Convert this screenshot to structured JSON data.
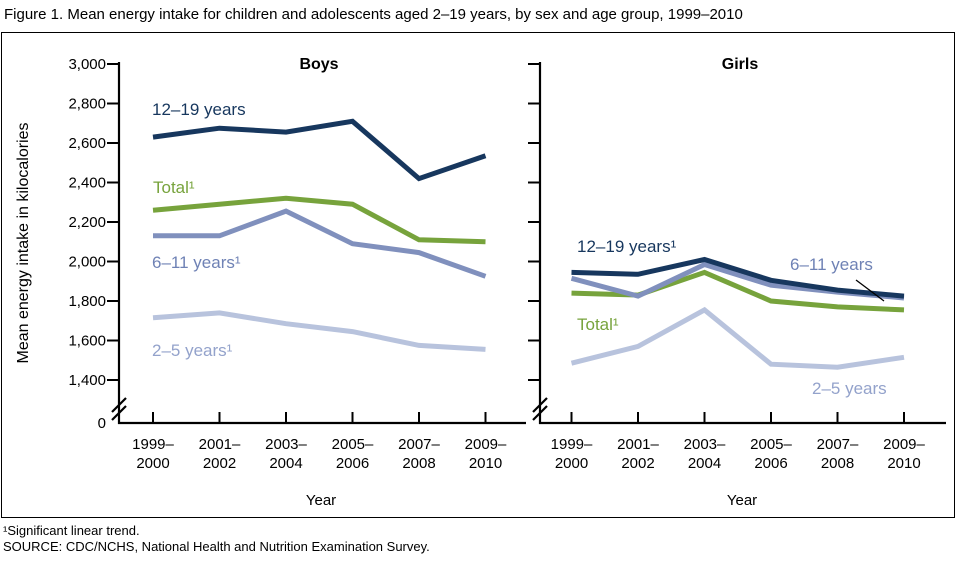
{
  "chart_data": {
    "type": "line",
    "title": "Figure 1. Mean energy intake for children and adolescents aged 2–19 years, by sex and age group, 1999–2010",
    "ylabel": "Mean energy intake in kilocalories",
    "xlabel": "Year",
    "ylim_displayed": [
      1400,
      3000
    ],
    "axis_break_to_zero": true,
    "zero_label": "0",
    "ytick_labels": [
      "3,000",
      "2,800",
      "2,600",
      "2,400",
      "2,200",
      "2,000",
      "1,800",
      "1,600",
      "1,400"
    ],
    "ytick_values": [
      3000,
      2800,
      2600,
      2400,
      2200,
      2000,
      1800,
      1600,
      1400
    ],
    "categories": [
      "1999–2000",
      "2001–2002",
      "2003–2004",
      "2005–2006",
      "2007–2008",
      "2009–2010"
    ],
    "category_display": [
      [
        "1999–",
        "2000"
      ],
      [
        "2001–",
        "2002"
      ],
      [
        "2003–",
        "2004"
      ],
      [
        "2005–",
        "2006"
      ],
      [
        "2007–",
        "2008"
      ],
      [
        "2009–",
        "2010"
      ]
    ],
    "grid": false,
    "legend": "inline-labels",
    "panels": [
      {
        "title": "Boys",
        "series": [
          {
            "id": "two5",
            "name": "2–5 years",
            "label": "2–5 years¹",
            "line_color": "#b8c3dd",
            "label_color": "#93a2cb",
            "values": [
              1715,
              1740,
              1685,
              1645,
              1575,
              1555
            ]
          },
          {
            "id": "total",
            "name": "Total",
            "label": "Total¹",
            "line_color": "#77a33c",
            "label_color": "#77a33c",
            "values": [
              2260,
              2290,
              2320,
              2290,
              2110,
              2100
            ]
          },
          {
            "id": "six11",
            "name": "6–11 years",
            "label": "6–11 years¹",
            "line_color": "#8090bd",
            "label_color": "#6f82b5",
            "values": [
              2130,
              2130,
              2255,
              2090,
              2045,
              1925
            ]
          },
          {
            "id": "twelve19",
            "name": "12–19 years",
            "label": "12–19 years",
            "line_color": "#17375e",
            "label_color": "#17375e",
            "values": [
              2630,
              2675,
              2655,
              2710,
              2420,
              2535
            ]
          }
        ]
      },
      {
        "title": "Girls",
        "series": [
          {
            "id": "two5",
            "name": "2–5 years",
            "label": "2–5 years",
            "line_color": "#b8c3dd",
            "label_color": "#93a2cb",
            "values": [
              1485,
              1570,
              1755,
              1480,
              1465,
              1515
            ]
          },
          {
            "id": "total",
            "name": "Total",
            "label": "Total¹",
            "line_color": "#77a33c",
            "label_color": "#77a33c",
            "values": [
              1840,
              1830,
              1945,
              1800,
              1770,
              1755
            ]
          },
          {
            "id": "six11",
            "name": "6–11 years",
            "label": "6–11 years",
            "line_color": "#8090bd",
            "label_color": "#6f82b5",
            "values": [
              1915,
              1825,
              1985,
              1880,
              1845,
              1815
            ]
          },
          {
            "id": "twelve19",
            "name": "12–19 years",
            "label": "12–19 years¹",
            "line_color": "#17375e",
            "label_color": "#17375e",
            "values": [
              1945,
              1935,
              2010,
              1905,
              1855,
              1825
            ]
          }
        ]
      }
    ],
    "footnotes": [
      "¹Significant linear trend.",
      "SOURCE: CDC/NCHS, National Health and Nutrition Examination Survey."
    ],
    "colors": {
      "axis": "#000000",
      "navy": "#17375e",
      "green": "#77a33c",
      "mid_blue": "#8090bd",
      "light_blue": "#b8c3dd"
    }
  }
}
